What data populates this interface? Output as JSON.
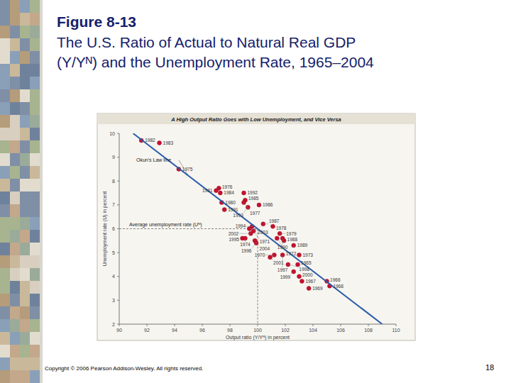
{
  "slide": {
    "figure_label": "Figure 8-13",
    "title": [
      "The U.S. Ratio of Actual to Natural Real GDP",
      "(Y/Yᴺ) and the Unemployment Rate, 1965–2004"
    ]
  },
  "chart_data": {
    "type": "scatter",
    "title": "A High Output Ratio Goes with Low Unemployment, and Vice Versa",
    "x_label": "Output ratio (Y/Yᴺ) in percent",
    "y_label": "Unemployment rate (U) in percent",
    "xlim": [
      90,
      110
    ],
    "xticks": [
      90,
      92,
      94,
      96,
      98,
      100,
      102,
      104,
      106,
      108,
      110
    ],
    "ylim": [
      2,
      10
    ],
    "yticks": [
      2,
      3,
      4,
      5,
      6,
      7,
      8,
      9,
      10
    ],
    "grid": false,
    "series": [
      {
        "type": "scatter",
        "color": "#c8102e",
        "marker": "circle",
        "labels": [
          "1982",
          "1983",
          "1975",
          "1976",
          "1981",
          "1984",
          "1980",
          "1991",
          "1992",
          "1985",
          "1977",
          "1986",
          "1993",
          "1994",
          "2003",
          "2002",
          "1995",
          "1974",
          "1971",
          "2004",
          "1996",
          "1987",
          "1978",
          "1979",
          "1990",
          "1972",
          "1988",
          "1989",
          "1970",
          "2001",
          "1997",
          "1998",
          "1965",
          "1973",
          "1999",
          "2000",
          "1967",
          "1969",
          "1968",
          "1966"
        ],
        "x": [
          91.6,
          92.9,
          94.3,
          97.2,
          97.0,
          97.3,
          97.4,
          97.6,
          99.0,
          99.1,
          99.0,
          100.1,
          99.3,
          99.6,
          99.4,
          99.5,
          98.9,
          99.1,
          99.7,
          99.8,
          99.9,
          100.4,
          101.1,
          101.6,
          101.8,
          101.4,
          101.9,
          102.6,
          101.2,
          100.9,
          101.8,
          102.2,
          102.9,
          103.0,
          102.6,
          103.0,
          103.2,
          103.7,
          105.2,
          105.0
        ],
        "values": [
          9.7,
          9.6,
          8.5,
          7.7,
          7.6,
          7.5,
          7.1,
          6.8,
          7.5,
          7.2,
          7.1,
          7.0,
          6.9,
          6.1,
          6.0,
          5.8,
          5.6,
          5.6,
          5.9,
          5.5,
          5.4,
          6.2,
          6.1,
          5.8,
          5.6,
          5.6,
          5.5,
          5.3,
          4.9,
          4.8,
          4.9,
          4.5,
          4.5,
          4.9,
          4.2,
          4.0,
          3.8,
          3.5,
          3.6,
          3.8
        ]
      },
      {
        "type": "line",
        "color": "#2a5caa",
        "line_style": "solid",
        "label": "Okun's Law line",
        "x": [
          91,
          109
        ],
        "values": [
          10,
          2
        ]
      }
    ],
    "reference": {
      "x": 100,
      "y": 6,
      "label": "Average unemployment rate (Uᴺ)",
      "line_style": "dashed"
    }
  },
  "footer": {
    "copyright": "Copyright © 2006 Pearson Addison-Wesley. All rights reserved.",
    "page": 18
  }
}
